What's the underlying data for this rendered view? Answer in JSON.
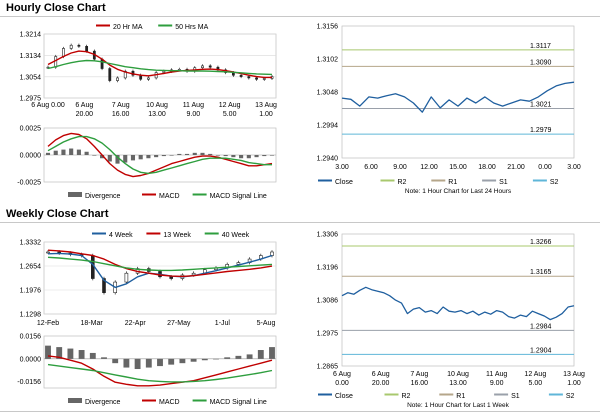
{
  "sections": {
    "hourly_title": "Hourly Close Chart",
    "weekly_title": "Weekly Close Chart"
  },
  "colors": {
    "close": "#1f5f9f",
    "ma_red": "#c00000",
    "ma_green": "#2e9e3e",
    "r_line": "#b5a68a",
    "r2_line": "#a8c86e",
    "s_line": "#9aa0aa",
    "s2_line": "#5fb6d8",
    "candle": "#222222",
    "divergence": "#666666",
    "grid": "#d9d9d9",
    "rule": "#c8c8c8"
  },
  "chart_data": [
    {
      "id": "hourly_candles",
      "type": "line",
      "title": "",
      "legend": [
        "20 Hr MA",
        "50 Hrs MA"
      ],
      "yticks": [
        "1.3214",
        "1.3134",
        "1.3054",
        "1.2975"
      ],
      "ylim": [
        1.2975,
        1.3214
      ],
      "xticks": [
        [
          "6 Aug 0.00",
          ""
        ],
        [
          "6 Aug",
          "20.00"
        ],
        [
          "7 Aug",
          "16.00"
        ],
        [
          "10 Aug",
          "13.00"
        ],
        [
          "11 Aug",
          "9.00"
        ],
        [
          "12 Aug",
          "5.00"
        ],
        [
          "13 Aug",
          "1.00"
        ]
      ],
      "series": [
        {
          "name": "Close",
          "values": [
            1.309,
            1.313,
            1.316,
            1.3172,
            1.3168,
            1.315,
            1.312,
            1.3085,
            1.304,
            1.305,
            1.3075,
            1.306,
            1.3045,
            1.305,
            1.307,
            1.3075,
            1.308,
            1.3082,
            1.3075,
            1.3088,
            1.3095,
            1.309,
            1.308,
            1.307,
            1.306,
            1.3055,
            1.305,
            1.3045,
            1.3048,
            1.3055
          ]
        },
        {
          "name": "20 Hr MA",
          "values": [
            1.31,
            1.3115,
            1.313,
            1.3143,
            1.315,
            1.3148,
            1.3138,
            1.312,
            1.3098,
            1.3082,
            1.3072,
            1.3065,
            1.306,
            1.3058,
            1.3062,
            1.3067,
            1.3072,
            1.3076,
            1.3078,
            1.308,
            1.3082,
            1.3083,
            1.3081,
            1.3077,
            1.3072,
            1.3066,
            1.306,
            1.3055,
            1.3052,
            1.3052
          ]
        },
        {
          "name": "50 Hrs MA",
          "values": [
            1.3085,
            1.3092,
            1.31,
            1.3107,
            1.3112,
            1.3115,
            1.3114,
            1.311,
            1.3104,
            1.3098,
            1.3092,
            1.3088,
            1.3084,
            1.3081,
            1.3079,
            1.3078,
            1.3077,
            1.3077,
            1.3076,
            1.3076,
            1.3076,
            1.3075,
            1.3074,
            1.3073,
            1.3071,
            1.3069,
            1.3067,
            1.3065,
            1.3064,
            1.3063
          ]
        }
      ]
    },
    {
      "id": "hourly_macd",
      "type": "bar",
      "legend": [
        "Divergence",
        "MACD",
        "MACD Signal Line"
      ],
      "yticks": [
        "0.0025",
        "0.0000",
        "-0.0025"
      ],
      "ylim": [
        -0.0025,
        0.0025
      ],
      "series": [
        {
          "name": "Divergence",
          "values": [
            0.0002,
            0.0004,
            0.0005,
            0.0006,
            0.0005,
            0.0003,
            0.0,
            -0.0003,
            -0.0006,
            -0.0008,
            -0.0007,
            -0.0005,
            -0.0004,
            -0.0003,
            -0.0002,
            -0.0001,
            0.0,
            0.0001,
            0.0001,
            0.0002,
            0.0002,
            0.0001,
            0.0,
            -0.0001,
            -0.0002,
            -0.0003,
            -0.0003,
            -0.0002,
            -0.0001,
            0.0
          ]
        },
        {
          "name": "MACD",
          "values": [
            0.0008,
            0.0014,
            0.0018,
            0.002,
            0.0019,
            0.0015,
            0.0008,
            0.0,
            -0.0008,
            -0.0014,
            -0.0018,
            -0.002,
            -0.0019,
            -0.0017,
            -0.0014,
            -0.0011,
            -0.0008,
            -0.0006,
            -0.0004,
            -0.0002,
            -0.0001,
            -0.0001,
            -0.0002,
            -0.0004,
            -0.0006,
            -0.0008,
            -0.001,
            -0.001,
            -0.0009,
            -0.0008
          ]
        },
        {
          "name": "MACD Signal Line",
          "values": [
            0.0004,
            0.0008,
            0.0012,
            0.0015,
            0.0017,
            0.0017,
            0.0015,
            0.0011,
            0.0005,
            -0.0002,
            -0.0008,
            -0.0013,
            -0.0016,
            -0.0017,
            -0.0016,
            -0.0014,
            -0.0012,
            -0.001,
            -0.0008,
            -0.0006,
            -0.0004,
            -0.0003,
            -0.0003,
            -0.0003,
            -0.0004,
            -0.0005,
            -0.0007,
            -0.0008,
            -0.0009,
            -0.0009
          ]
        }
      ]
    },
    {
      "id": "hourly_pivot",
      "type": "line",
      "yticks": [
        "1.3156",
        "1.3102",
        "1.3048",
        "1.2994",
        "1.2940"
      ],
      "ylim": [
        1.294,
        1.3156
      ],
      "xticks": [
        "3.00",
        "6.00",
        "9.00",
        "12.00",
        "15.00",
        "18.00",
        "21.00",
        "0.00",
        "3.00"
      ],
      "legend": [
        "Close",
        "R2",
        "R1",
        "S1",
        "S2"
      ],
      "levels": [
        {
          "name": "R2",
          "value": 1.3117,
          "label": "1.3117"
        },
        {
          "name": "R1",
          "value": 1.309,
          "label": "1.3090"
        },
        {
          "name": "S1",
          "value": 1.3021,
          "label": "1.3021"
        },
        {
          "name": "S2",
          "value": 1.2979,
          "label": "1.2979"
        }
      ],
      "series": [
        {
          "name": "Close",
          "values": [
            1.3038,
            1.3036,
            1.3025,
            1.304,
            1.3038,
            1.3042,
            1.3045,
            1.304,
            1.303,
            1.3015,
            1.304,
            1.3022,
            1.3035,
            1.3025,
            1.3038,
            1.303,
            1.304,
            1.303,
            1.3025,
            1.303,
            1.3035,
            1.3033,
            1.304,
            1.305,
            1.3058,
            1.3062,
            1.3064
          ]
        }
      ],
      "note": "Note: 1 Hour Chart for Last 24 Hours"
    },
    {
      "id": "weekly_candles",
      "type": "line",
      "legend": [
        "4 Week",
        "13 Week",
        "40 Week"
      ],
      "yticks": [
        "1.3332",
        "1.2654",
        "1.1976",
        "1.1298"
      ],
      "ylim": [
        1.1298,
        1.3332
      ],
      "xticks": [
        "12-Feb",
        "18-Mar",
        "22-Apr",
        "27-May",
        "1-Jul",
        "5-Aug"
      ],
      "series": [
        {
          "name": "Close",
          "values": [
            1.305,
            1.302,
            1.298,
            1.295,
            1.23,
            1.19,
            1.22,
            1.245,
            1.258,
            1.25,
            1.235,
            1.23,
            1.24,
            1.245,
            1.255,
            1.26,
            1.27,
            1.275,
            1.285,
            1.295,
            1.305
          ]
        },
        {
          "name": "4 Week",
          "values": [
            1.3,
            1.301,
            1.299,
            1.295,
            1.27,
            1.225,
            1.205,
            1.215,
            1.235,
            1.245,
            1.242,
            1.237,
            1.235,
            1.238,
            1.245,
            1.252,
            1.26,
            1.268,
            1.276,
            1.285,
            1.295
          ]
        },
        {
          "name": "13 Week",
          "values": [
            1.31,
            1.308,
            1.305,
            1.3,
            1.295,
            1.285,
            1.27,
            1.258,
            1.25,
            1.245,
            1.24,
            1.237,
            1.236,
            1.238,
            1.242,
            1.246,
            1.25,
            1.253,
            1.256,
            1.26,
            1.265
          ]
        },
        {
          "name": "40 Week",
          "values": [
            1.29,
            1.288,
            1.285,
            1.282,
            1.278,
            1.272,
            1.266,
            1.26,
            1.256,
            1.254,
            1.253,
            1.253,
            1.254,
            1.256,
            1.258,
            1.26,
            1.262,
            1.264,
            1.266,
            1.268,
            1.27
          ]
        }
      ]
    },
    {
      "id": "weekly_macd",
      "type": "bar",
      "legend": [
        "Divergence",
        "MACD",
        "MACD Signal Line"
      ],
      "yticks": [
        "0.0156",
        "0.0000",
        "-0.0156"
      ],
      "ylim": [
        -0.02,
        0.0156
      ],
      "series": [
        {
          "name": "Divergence",
          "values": [
            0.009,
            0.008,
            0.007,
            0.006,
            0.004,
            0.001,
            -0.003,
            -0.006,
            -0.007,
            -0.006,
            -0.005,
            -0.004,
            -0.003,
            -0.002,
            -0.001,
            0.0,
            0.001,
            0.002,
            0.003,
            0.006,
            0.008
          ]
        },
        {
          "name": "MACD",
          "values": [
            0.002,
            0.001,
            -0.001,
            -0.003,
            -0.007,
            -0.012,
            -0.016,
            -0.0175,
            -0.0185,
            -0.0185,
            -0.018,
            -0.017,
            -0.016,
            -0.015,
            -0.013,
            -0.011,
            -0.009,
            -0.007,
            -0.005,
            -0.003,
            -0.001
          ]
        },
        {
          "name": "MACD Signal Line",
          "values": [
            -0.004,
            -0.005,
            -0.006,
            -0.007,
            -0.008,
            -0.0095,
            -0.011,
            -0.0125,
            -0.014,
            -0.015,
            -0.0155,
            -0.0158,
            -0.0158,
            -0.0155,
            -0.015,
            -0.0142,
            -0.0132,
            -0.012,
            -0.0108,
            -0.0095,
            -0.008
          ]
        }
      ]
    },
    {
      "id": "weekly_pivot",
      "type": "line",
      "yticks": [
        "1.3306",
        "1.3196",
        "1.3086",
        "1.2975",
        "1.2865"
      ],
      "ylim": [
        1.2865,
        1.3306
      ],
      "xticks": [
        [
          "6 Aug",
          "0.00"
        ],
        [
          "6 Aug",
          "20.00"
        ],
        [
          "7 Aug",
          "16.00"
        ],
        [
          "10 Aug",
          "13.00"
        ],
        [
          "11 Aug",
          "9.00"
        ],
        [
          "12 Aug",
          "5.00"
        ],
        [
          "13 Aug",
          "1.00"
        ]
      ],
      "legend": [
        "Close",
        "R2",
        "R1",
        "S1",
        "S2"
      ],
      "levels": [
        {
          "name": "R2",
          "value": 1.3266,
          "label": "1.3266"
        },
        {
          "name": "R1",
          "value": 1.3165,
          "label": "1.3165"
        },
        {
          "name": "S1",
          "value": 1.2984,
          "label": "1.2984"
        },
        {
          "name": "S2",
          "value": 1.2904,
          "label": "1.2904"
        }
      ],
      "series": [
        {
          "name": "Close",
          "values": [
            1.31,
            1.311,
            1.3105,
            1.3118,
            1.3128,
            1.312,
            1.3115,
            1.311,
            1.31,
            1.3085,
            1.3075,
            1.304,
            1.3055,
            1.306,
            1.3045,
            1.305,
            1.304,
            1.3062,
            1.3048,
            1.3045,
            1.305,
            1.304,
            1.3048,
            1.3035,
            1.3045,
            1.3038,
            1.305,
            1.3045,
            1.303,
            1.3025,
            1.3035,
            1.303,
            1.3048,
            1.304,
            1.3032,
            1.302,
            1.3028,
            1.304,
            1.3062,
            1.3066
          ]
        }
      ],
      "note": "Note: 1 Hour Chart for Last 1 Week"
    }
  ]
}
